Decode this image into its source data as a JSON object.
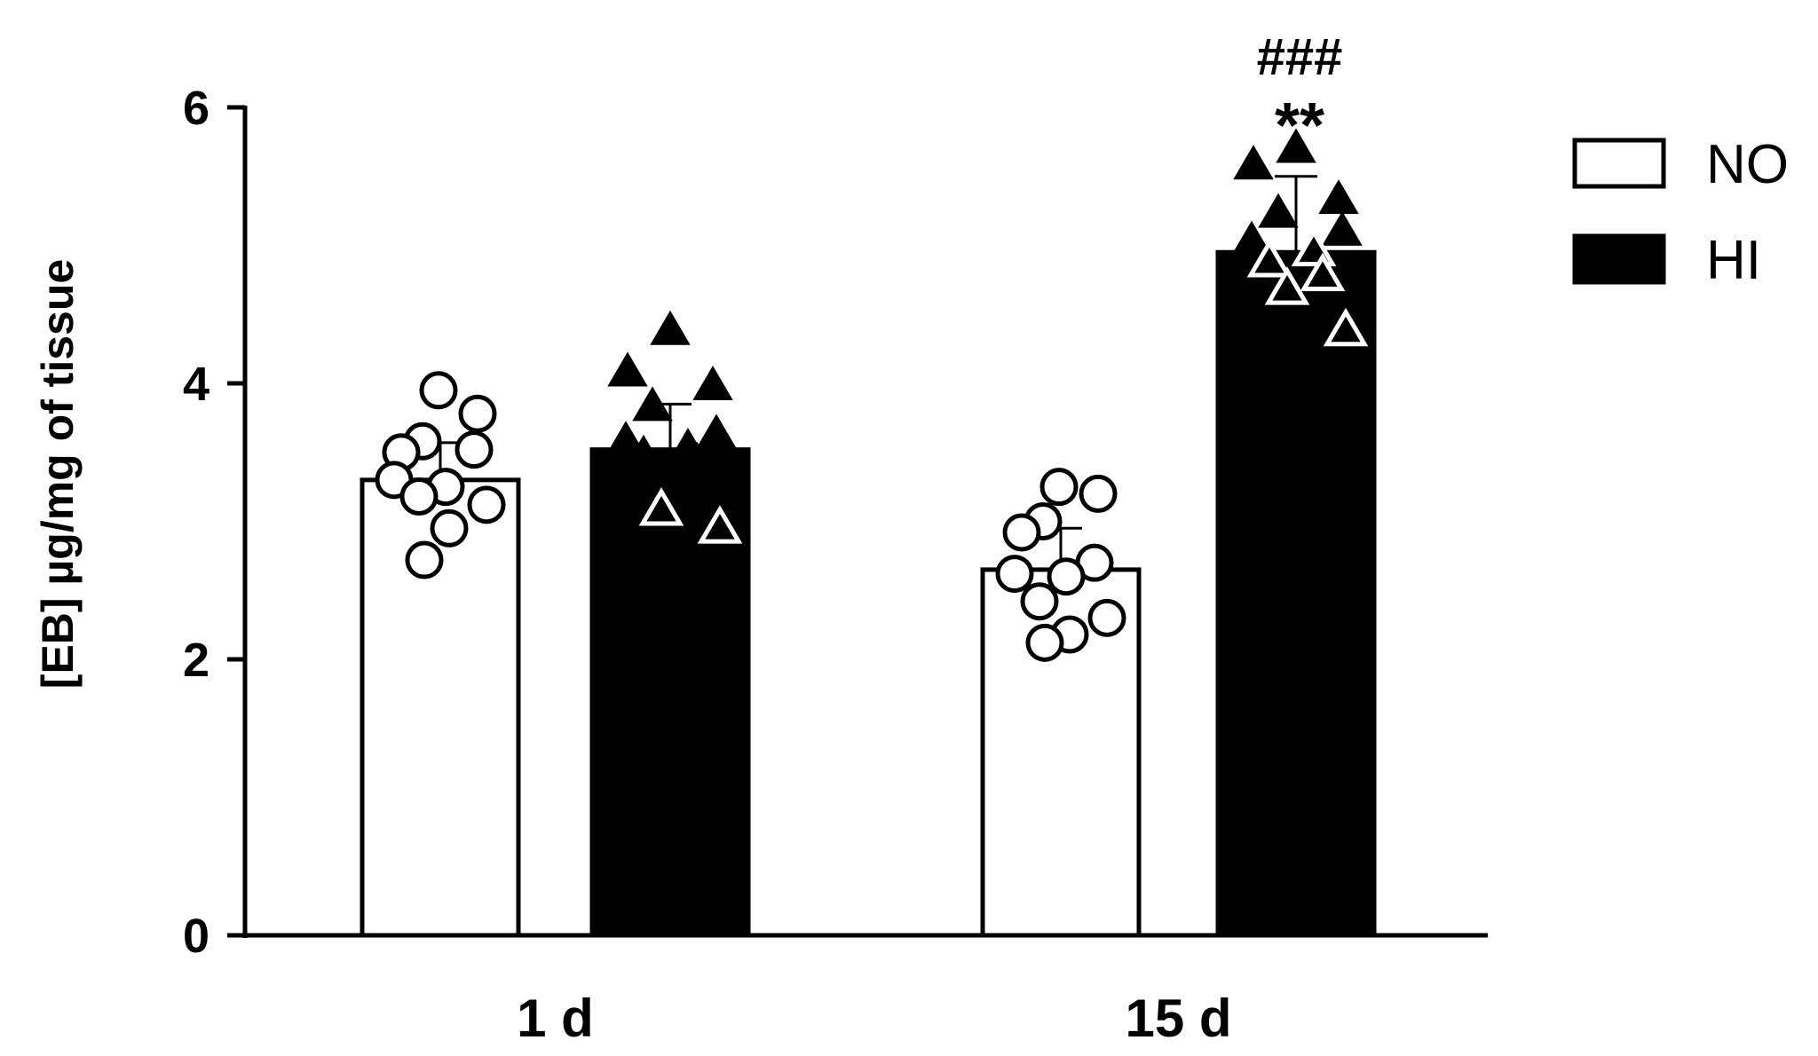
{
  "chart_data": {
    "type": "bar",
    "ylabel": "[EB] µg/mg of tissue",
    "xlabel": "",
    "ylim": [
      0,
      6
    ],
    "yticks": [
      0,
      2,
      4,
      6
    ],
    "categories": [
      "1 d",
      "15 d"
    ],
    "grid": false,
    "legend_position": "top-right",
    "series": [
      {
        "name": "NO",
        "fill": "#ffffff",
        "marker": "open-circle",
        "values": [
          3.3,
          2.65
        ],
        "errors": [
          0.27,
          0.3
        ],
        "points": [
          [
            3.95,
            3.78,
            3.58,
            3.5,
            3.52,
            3.3,
            3.25,
            3.18,
            3.12,
            2.95,
            2.72
          ],
          [
            3.25,
            3.2,
            3.0,
            2.92,
            2.7,
            2.62,
            2.6,
            2.42,
            2.3,
            2.18,
            2.12
          ]
        ]
      },
      {
        "name": "HI",
        "fill": "#000000",
        "marker": "triangle",
        "values": [
          3.52,
          4.95
        ],
        "errors": [
          0.33,
          0.55
        ],
        "points": [
          [
            4.4,
            4.1,
            4.0,
            3.85,
            3.65,
            3.6,
            3.55,
            3.5,
            3.45,
            3.1,
            2.97
          ],
          [
            5.72,
            5.6,
            5.35,
            5.25,
            5.12,
            5.05,
            4.98,
            4.9,
            4.8,
            4.7,
            4.4
          ]
        ],
        "open_from": [
          9,
          6
        ]
      }
    ],
    "annotations": [
      {
        "category": "15 d",
        "series": "HI",
        "text": "###",
        "row": 2
      },
      {
        "category": "15 d",
        "series": "HI",
        "text": "**",
        "row": 1
      }
    ]
  }
}
